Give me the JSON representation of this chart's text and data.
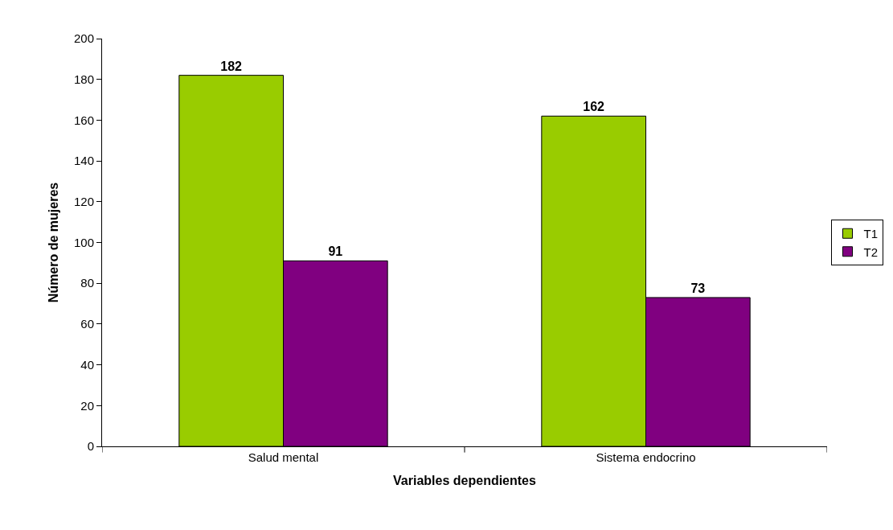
{
  "chart_data": {
    "type": "bar",
    "xlabel": "Variables dependientes",
    "ylabel": "Número de mujeres",
    "categories": [
      "Salud mental",
      "Sistema endocrino"
    ],
    "series": [
      {
        "name": "T1",
        "color": "#99cc00",
        "values": [
          182,
          162
        ]
      },
      {
        "name": "T2",
        "color": "#800080",
        "values": [
          91,
          73
        ]
      }
    ],
    "ylim": [
      0,
      200
    ],
    "yticks": [
      0,
      20,
      40,
      60,
      80,
      100,
      120,
      140,
      160,
      180,
      200
    ],
    "data_labels": true,
    "legend": "right"
  }
}
